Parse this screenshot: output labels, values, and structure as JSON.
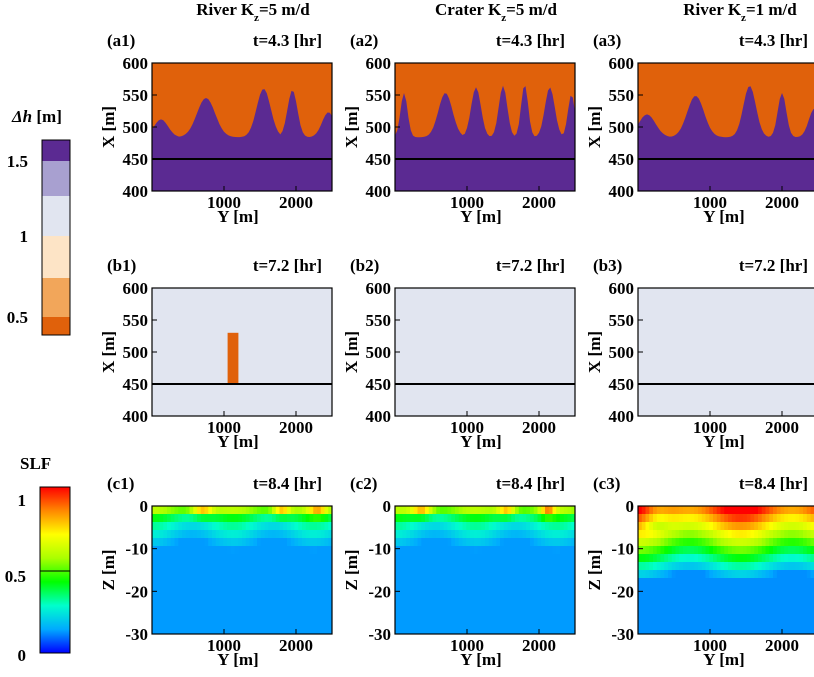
{
  "figure": {
    "columns": [
      {
        "pre": "River K",
        "sub": "z",
        "post": "=5 m/d"
      },
      {
        "pre": "Crater K",
        "sub": "z",
        "post": "=5 m/d"
      },
      {
        "pre": "River K",
        "sub": "z",
        "post": "=1 m/d"
      }
    ]
  },
  "legends": {
    "dh": {
      "label_italic": "Δh",
      "label_unit": " [m]",
      "ticks": [
        "1.5",
        "1",
        "0.5"
      ],
      "bands": [
        {
          "color": "#e0610b"
        },
        {
          "color": "#f2a65a"
        },
        {
          "color": "#fde4c6"
        },
        {
          "color": "#e1e5f0"
        },
        {
          "color": "#a8a0d0"
        },
        {
          "color": "#5b2a92"
        }
      ]
    },
    "slf": {
      "label": "SLF",
      "ticks": [
        "1",
        "0.5",
        "0"
      ],
      "colormap": [
        "#0000ff",
        "#00aaff",
        "#00ffcc",
        "#00ff00",
        "#aaff00",
        "#ffff00",
        "#ff8800",
        "#ff0000"
      ]
    }
  },
  "chart_data": [
    {
      "id": "a1",
      "type": "heatmap",
      "panel_label": "(a1)",
      "time": "t=4.3 [hr]",
      "xlabel": "Y [m]",
      "ylabel": "X [m]",
      "xticks": [
        "1000",
        "2000"
      ],
      "yticks": [
        "600",
        "550",
        "500",
        "450",
        "400"
      ],
      "ylim": [
        400,
        600
      ],
      "xlim": [
        0,
        2500
      ],
      "reference_line_x": 450
    },
    {
      "id": "a2",
      "type": "heatmap",
      "panel_label": "(a2)",
      "time": "t=4.3 [hr]",
      "xlabel": "Y [m]",
      "ylabel": "X [m]",
      "xticks": [
        "1000",
        "2000"
      ],
      "yticks": [
        "600",
        "550",
        "500",
        "450",
        "400"
      ],
      "ylim": [
        400,
        600
      ],
      "xlim": [
        0,
        2500
      ],
      "reference_line_x": 450
    },
    {
      "id": "a3",
      "type": "heatmap",
      "panel_label": "(a3)",
      "time": "t=4.3 [hr]",
      "xlabel": "Y [m]",
      "ylabel": "X [m]",
      "xticks": [
        "1000",
        "2000"
      ],
      "yticks": [
        "600",
        "550",
        "500",
        "450",
        "400"
      ],
      "ylim": [
        400,
        600
      ],
      "xlim": [
        0,
        2500
      ],
      "reference_line_x": 450
    },
    {
      "id": "b1",
      "type": "heatmap",
      "panel_label": "(b1)",
      "time": "t=7.2 [hr]",
      "xlabel": "Y [m]",
      "ylabel": "X [m]",
      "xticks": [
        "1000",
        "2000"
      ],
      "yticks": [
        "600",
        "550",
        "500",
        "450",
        "400"
      ],
      "ylim": [
        400,
        600
      ],
      "xlim": [
        0,
        2500
      ],
      "reference_line_x": 450
    },
    {
      "id": "b2",
      "type": "heatmap",
      "panel_label": "(b2)",
      "time": "t=7.2 [hr]",
      "xlabel": "Y [m]",
      "ylabel": "X [m]",
      "xticks": [
        "1000",
        "2000"
      ],
      "yticks": [
        "600",
        "550",
        "500",
        "450",
        "400"
      ],
      "ylim": [
        400,
        600
      ],
      "xlim": [
        0,
        2500
      ],
      "reference_line_x": 450
    },
    {
      "id": "b3",
      "type": "heatmap",
      "panel_label": "(b3)",
      "time": "t=7.2 [hr]",
      "xlabel": "Y [m]",
      "ylabel": "X [m]",
      "xticks": [
        "1000",
        "2000"
      ],
      "yticks": [
        "600",
        "550",
        "500",
        "450",
        "400"
      ],
      "ylim": [
        400,
        600
      ],
      "xlim": [
        0,
        2500
      ],
      "reference_line_x": 450
    },
    {
      "id": "c1",
      "type": "heatmap",
      "panel_label": "(c1)",
      "time": "t=8.4 [hr]",
      "xlabel": "Y [m]",
      "ylabel": "Z [m]",
      "xticks": [
        "1000",
        "2000"
      ],
      "yticks": [
        "0",
        "-10",
        "-20",
        "-30"
      ],
      "ylim": [
        -30,
        0
      ],
      "xlim": [
        0,
        2500
      ]
    },
    {
      "id": "c2",
      "type": "heatmap",
      "panel_label": "(c2)",
      "time": "t=8.4 [hr]",
      "xlabel": "Y [m]",
      "ylabel": "Z [m]",
      "xticks": [
        "1000",
        "2000"
      ],
      "yticks": [
        "0",
        "-10",
        "-20",
        "-30"
      ],
      "ylim": [
        -30,
        0
      ],
      "xlim": [
        0,
        2500
      ]
    },
    {
      "id": "c3",
      "type": "heatmap",
      "panel_label": "(c3)",
      "time": "t=8.4 [hr]",
      "xlabel": "Y [m]",
      "ylabel": "Z [m]",
      "xticks": [
        "1000",
        "2000"
      ],
      "yticks": [
        "0",
        "-10",
        "-20",
        "-30"
      ],
      "ylim": [
        -30,
        0
      ],
      "xlim": [
        0,
        2500
      ]
    }
  ]
}
